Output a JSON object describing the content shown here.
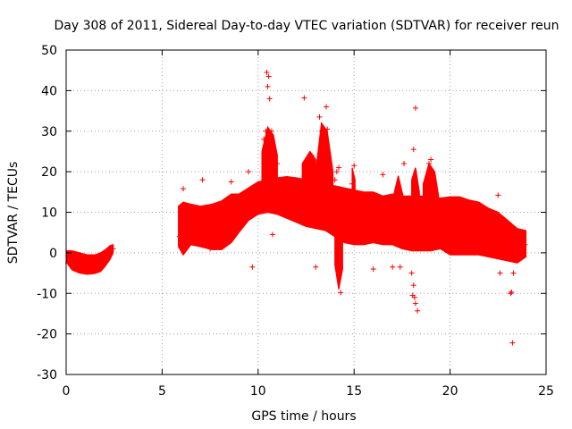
{
  "chart_data": {
    "type": "scatter",
    "title": "Day 308 of 2011, Sidereal Day-to-day VTEC variation (SDTVAR) for receiver reun",
    "xlabel": "GPS time / hours",
    "ylabel": "SDTVAR / TECUs",
    "xlim": [
      0,
      25
    ],
    "ylim": [
      -30,
      50
    ],
    "x_ticks": [
      0,
      5,
      10,
      15,
      20,
      25
    ],
    "y_ticks": [
      -30,
      -20,
      -10,
      0,
      10,
      20,
      30,
      40,
      50
    ],
    "grid": true,
    "marker": "+",
    "series": [
      {
        "name": "SDTVAR",
        "color": "#ff0000",
        "x": [
          0.1,
          0.4,
          0.7,
          1.0,
          1.3,
          1.6,
          1.9,
          2.1,
          2.3,
          2.45,
          5.9,
          6.2,
          6.6,
          7.0,
          7.5,
          8.0,
          8.5,
          9.0,
          9.5,
          10.0,
          10.5,
          11.0,
          11.5,
          12.0,
          12.5,
          13.0,
          13.5,
          14.0,
          14.5,
          15.0,
          15.5,
          16.0,
          16.5,
          17.0,
          17.5,
          18.0,
          18.5,
          19.0,
          19.5,
          20.0,
          20.5,
          21.0,
          21.5,
          22.0,
          22.5,
          23.0,
          23.5,
          23.9,
          6.1,
          6.3,
          7.1,
          8.6,
          9.5,
          9.7,
          10.3,
          10.4,
          10.45,
          10.5,
          10.55,
          10.6,
          10.7,
          10.75,
          10.9,
          11.0,
          10.6,
          12.4,
          12.7,
          12.8,
          13.2,
          13.3,
          13.4,
          13.55,
          13.6,
          13.0,
          14.0,
          14.1,
          14.2,
          14.3,
          14.35,
          15.0,
          14.9,
          16.0,
          16.5,
          17.0,
          17.4,
          17.6,
          18.1,
          18.2,
          18.15,
          18.3,
          18.5,
          18.9,
          19.0,
          18.0,
          18.05,
          18.1,
          18.2,
          22.5,
          22.6,
          23.2,
          23.25,
          23.15,
          23.3
        ],
        "y": [
          -2.5,
          -3.0,
          -3.6,
          -4.0,
          -4.4,
          -4.2,
          -3.5,
          -2.0,
          -0.5,
          1.0,
          4,
          7,
          5,
          3,
          1,
          3,
          7,
          10,
          12,
          13,
          13.5,
          14,
          14,
          14,
          13,
          12,
          12,
          11,
          10,
          9,
          8,
          8,
          9,
          9,
          9,
          8,
          7,
          7,
          7,
          6,
          6,
          6,
          6,
          5,
          4,
          3,
          3,
          2,
          15.8,
          2.0,
          18.0,
          17.5,
          20.0,
          -3.5,
          28,
          30,
          44.5,
          41,
          43.5,
          38,
          30,
          4.5,
          24,
          22,
          14.5,
          38.2,
          22,
          24,
          33.5,
          30,
          28,
          36,
          30.5,
          -3.5,
          18,
          20,
          21,
          -9.8,
          14.5,
          21.5,
          17,
          -4.0,
          19.3,
          -3.5,
          -3.5,
          22,
          25.5,
          35.7,
          -11,
          -14.3,
          3,
          22,
          23,
          -5,
          -10.5,
          -8,
          -12.5,
          14.2,
          -5,
          -9.7,
          -22.2,
          -10,
          -5
        ]
      }
    ]
  }
}
